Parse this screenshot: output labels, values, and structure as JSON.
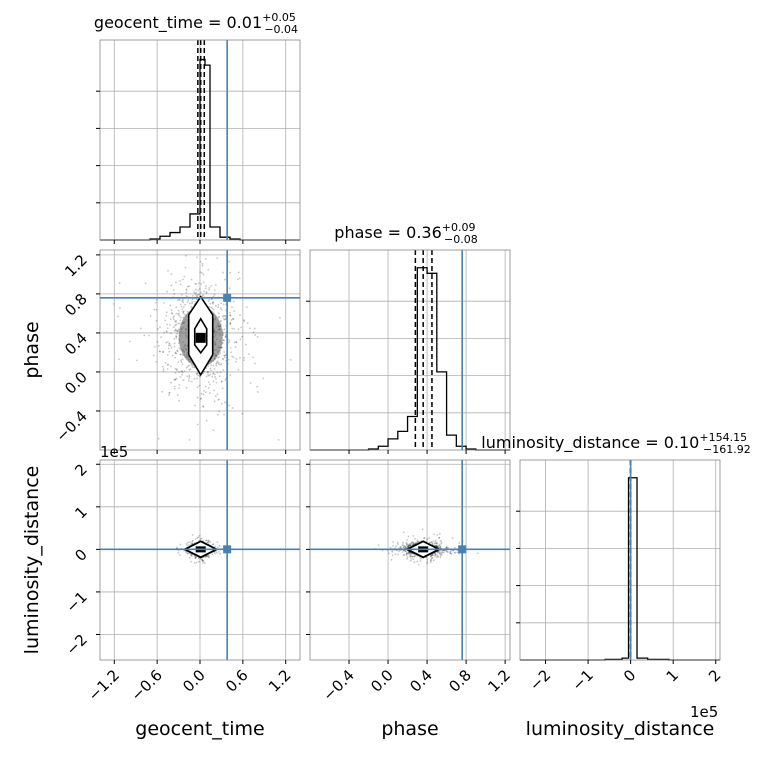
{
  "chart_data": {
    "type": "corner",
    "parameters": [
      {
        "name": "geocent_time",
        "label": "geocent_time",
        "median": "0.01",
        "plus": "+0.05",
        "minus": "−0.04",
        "truth": 0.38
      },
      {
        "name": "phase",
        "label": "phase",
        "median": "0.36",
        "plus": "+0.09",
        "minus": "−0.08",
        "truth": 0.76
      },
      {
        "name": "luminosity_distance",
        "label": "luminosity_distance",
        "median": "0.10",
        "plus": "+154.15",
        "minus": "−161.92",
        "truth": 0
      }
    ],
    "axis_ranges": {
      "geocent_time": [
        -1.4,
        1.4
      ],
      "phase": [
        -0.8,
        1.25
      ],
      "luminosity_distance": [
        -260000,
        210000
      ]
    },
    "ticks": {
      "geocent_time": {
        "values": [
          -1.2,
          -0.6,
          0.0,
          0.6,
          1.2
        ],
        "labels": [
          "−1.2",
          "−0.6",
          "0.0",
          "0.6",
          "1.2"
        ]
      },
      "phase": {
        "values": [
          -0.4,
          0.0,
          0.4,
          0.8,
          1.2
        ],
        "labels": [
          "−0.4",
          "0.0",
          "0.4",
          "0.8",
          "1.2"
        ]
      },
      "phase_y": {
        "values": [
          -0.4,
          0.0,
          0.4,
          0.8,
          1.2
        ],
        "labels": [
          "−0.4",
          "0.0",
          "0.4",
          "0.8",
          "1.2"
        ]
      },
      "luminosity_distance": {
        "values": [
          -2,
          -1,
          0,
          1,
          2
        ],
        "labels": [
          "−2",
          "−1",
          "0",
          "1",
          "2"
        ],
        "scale_label": "1e5"
      }
    },
    "grid": true,
    "truth_color": "#4682b4",
    "hist_color": "#000000",
    "histograms": {
      "geocent_time": {
        "edges": [
          -1.4,
          -1.26,
          -1.12,
          -0.98,
          -0.84,
          -0.7,
          -0.56,
          -0.42,
          -0.28,
          -0.14,
          0.0,
          0.07,
          0.14,
          0.28,
          0.42,
          0.56,
          0.7,
          0.84,
          0.98,
          1.12,
          1.26,
          1.4
        ],
        "counts": [
          0,
          0,
          0,
          0,
          0,
          0.005,
          0.02,
          0.04,
          0.07,
          0.14,
          0.97,
          0.94,
          0.07,
          0.015,
          0.005,
          0,
          0,
          0,
          0,
          0,
          0
        ],
        "quantile_lines": [
          -0.03,
          0.01,
          0.06
        ]
      },
      "phase": {
        "edges": [
          -0.8,
          -0.7,
          -0.6,
          -0.5,
          -0.4,
          -0.3,
          -0.2,
          -0.1,
          0.0,
          0.1,
          0.2,
          0.3,
          0.4,
          0.5,
          0.6,
          0.7,
          0.8,
          0.9,
          1.0,
          1.1,
          1.25
        ],
        "counts": [
          0,
          0,
          0,
          0,
          0,
          0,
          0.005,
          0.02,
          0.06,
          0.1,
          0.18,
          0.98,
          0.95,
          0.42,
          0.08,
          0.02,
          0.005,
          0,
          0,
          0
        ],
        "quantile_lines": [
          0.28,
          0.36,
          0.45
        ]
      },
      "luminosity_distance": {
        "edges": [
          -260000,
          -210000,
          -160000,
          -110000,
          -60000,
          -20000,
          -5000,
          15000,
          40000,
          90000,
          140000,
          210000
        ],
        "counts": [
          0,
          0,
          0,
          0,
          0.003,
          0.01,
          0.98,
          0.01,
          0.003,
          0,
          0
        ],
        "quantile_lines": [
          -160,
          0,
          150
        ]
      }
    }
  }
}
